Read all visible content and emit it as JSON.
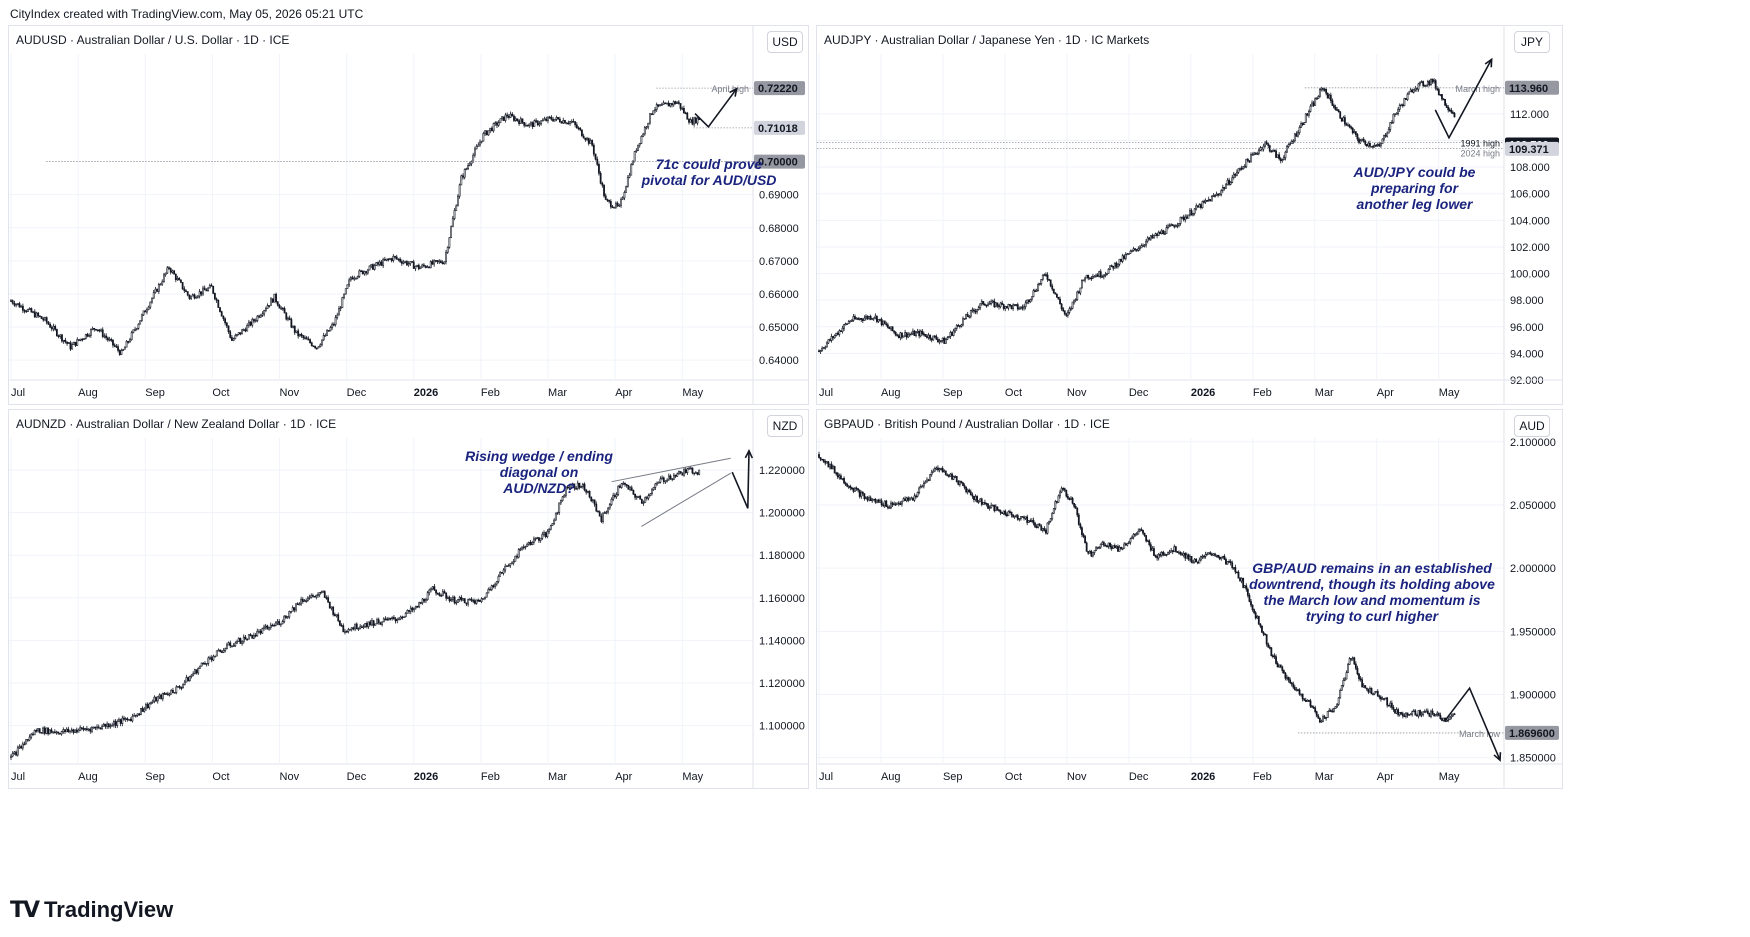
{
  "header": {
    "text": "CityIndex created with TradingView.com, May 05, 2026 05:21 UTC"
  },
  "footer": {
    "brand": "TradingView",
    "logo_icon": "tradingview-logo-icon"
  },
  "colors": {
    "candle": "#131722",
    "grid": "#f0f3fa",
    "accent_label": "#787b86",
    "annotation": "#1a237e"
  },
  "chart_data": [
    {
      "id": "audusd",
      "type": "candlestick",
      "title": "AUDUSD · Australian Dollar / U.S. Dollar · 1D · ICE",
      "unit": "USD",
      "ylim": [
        0.634,
        0.7325
      ],
      "y_ticks": [
        0.64,
        0.65,
        0.66,
        0.67,
        0.68,
        0.69
      ],
      "y_tick_labels": [
        "0.64000",
        "0.65000",
        "0.66000",
        "0.67000",
        "0.68000",
        "0.69000"
      ],
      "x_labels": [
        "Jul",
        "Aug",
        "Sep",
        "Oct",
        "Nov",
        "Dec",
        "2026",
        "Feb",
        "Mar",
        "Apr",
        "May"
      ],
      "price_path": [
        [
          0,
          0.658
        ],
        [
          20,
          0.652
        ],
        [
          35,
          0.644
        ],
        [
          50,
          0.65
        ],
        [
          65,
          0.642
        ],
        [
          80,
          0.656
        ],
        [
          93,
          0.668
        ],
        [
          105,
          0.659
        ],
        [
          118,
          0.662
        ],
        [
          130,
          0.646
        ],
        [
          143,
          0.652
        ],
        [
          155,
          0.659
        ],
        [
          168,
          0.648
        ],
        [
          180,
          0.644
        ],
        [
          190,
          0.651
        ],
        [
          200,
          0.665
        ],
        [
          212,
          0.668
        ],
        [
          225,
          0.671
        ],
        [
          240,
          0.668
        ],
        [
          255,
          0.67
        ],
        [
          265,
          0.695
        ],
        [
          278,
          0.708
        ],
        [
          292,
          0.714
        ],
        [
          305,
          0.711
        ],
        [
          318,
          0.713
        ],
        [
          330,
          0.712
        ],
        [
          342,
          0.705
        ],
        [
          350,
          0.688
        ],
        [
          358,
          0.686
        ],
        [
          368,
          0.704
        ],
        [
          378,
          0.716
        ],
        [
          392,
          0.718
        ],
        [
          400,
          0.712
        ],
        [
          405,
          0.713
        ]
      ],
      "price_labels": [
        {
          "value": 0.7222,
          "text": "0.72220",
          "style": "gray"
        },
        {
          "value": 0.71018,
          "text": "0.71018",
          "style": "light"
        },
        {
          "value": 0.7,
          "text": "0.70000",
          "style": "gray"
        }
      ],
      "levels": [
        {
          "value": 0.7222,
          "from": 0.87,
          "label": "April high"
        },
        {
          "value": 0.71018,
          "from": 0.92,
          "label": ""
        },
        {
          "value": 0.7,
          "from": 0.05,
          "label": ""
        }
      ],
      "arrows": [
        [
          [
            0.922,
            0.7145
          ],
          [
            0.94,
            0.7105
          ],
          [
            0.978,
            0.722
          ]
        ]
      ],
      "annotation": "71c could prove\npivotal for AUD/USD"
    },
    {
      "id": "audjpy",
      "type": "candlestick",
      "title": "AUDJPY · Australian Dollar / Japanese Yen · 1D · IC Markets",
      "unit": "JPY",
      "ylim": [
        92.0,
        116.5
      ],
      "y_ticks": [
        92,
        94,
        96,
        98,
        100,
        102,
        104,
        106,
        108,
        110,
        112
      ],
      "y_tick_labels": [
        "92.000",
        "94.000",
        "96.000",
        "98.000",
        "100.000",
        "102.000",
        "104.000",
        "106.000",
        "108.000",
        "",
        "112.000"
      ],
      "x_labels": [
        "Jul",
        "Aug",
        "Sep",
        "Oct",
        "Nov",
        "Dec",
        "2026",
        "Feb",
        "Mar",
        "Apr",
        "May"
      ],
      "price_path": [
        [
          0,
          94.2
        ],
        [
          20,
          96.5
        ],
        [
          35,
          96.8
        ],
        [
          50,
          95.4
        ],
        [
          65,
          95.5
        ],
        [
          80,
          94.9
        ],
        [
          92,
          96.5
        ],
        [
          105,
          97.8
        ],
        [
          118,
          97.6
        ],
        [
          130,
          97.4
        ],
        [
          145,
          100
        ],
        [
          158,
          96.7
        ],
        [
          170,
          99.8
        ],
        [
          182,
          100
        ],
        [
          195,
          101.2
        ],
        [
          210,
          102.5
        ],
        [
          225,
          103.5
        ],
        [
          240,
          104.8
        ],
        [
          255,
          106
        ],
        [
          270,
          108
        ],
        [
          285,
          109.8
        ],
        [
          295,
          108.5
        ],
        [
          312,
          112
        ],
        [
          322,
          114
        ],
        [
          332,
          112
        ],
        [
          345,
          110
        ],
        [
          358,
          109.5
        ],
        [
          368,
          112
        ],
        [
          380,
          114
        ],
        [
          392,
          114.5
        ],
        [
          400,
          112.8
        ],
        [
          406,
          112
        ]
      ],
      "price_labels": [
        {
          "value": 113.96,
          "text": "113.960",
          "style": "gray"
        },
        {
          "value": 109.7,
          "text": "109.700",
          "style": "dark"
        },
        {
          "value": 109.371,
          "text": "109.371",
          "style": "light"
        }
      ],
      "levels": [
        {
          "value": 113.96,
          "from": 0.71,
          "label": "March high"
        },
        {
          "value": 109.85,
          "from": 0.0,
          "label": "1991 high"
        },
        {
          "value": 109.4,
          "from": 0.0,
          "label": "2024 high"
        }
      ],
      "arrows": [
        [
          [
            0.9,
            112.3
          ],
          [
            0.92,
            110.2
          ],
          [
            0.982,
            116.1
          ]
        ]
      ],
      "annotation": "AUD/JPY could be\npreparing for\nanother leg lower"
    },
    {
      "id": "audnzd",
      "type": "candlestick",
      "title": "AUDNZD · Australian Dollar / New Zealand Dollar · 1D · ICE",
      "unit": "NZD",
      "ylim": [
        1.082,
        1.235
      ],
      "y_ticks": [
        1.1,
        1.12,
        1.14,
        1.16,
        1.18,
        1.2,
        1.22
      ],
      "y_tick_labels": [
        "1.100000",
        "1.120000",
        "1.140000",
        "1.160000",
        "1.180000",
        "1.200000",
        "1.220000"
      ],
      "x_labels": [
        "Jul",
        "Aug",
        "Sep",
        "Oct",
        "Nov",
        "Dec",
        "2026",
        "Feb",
        "Mar",
        "Apr",
        "May"
      ],
      "price_path": [
        [
          0,
          1.085
        ],
        [
          15,
          1.098
        ],
        [
          30,
          1.097
        ],
        [
          50,
          1.099
        ],
        [
          70,
          1.103
        ],
        [
          85,
          1.112
        ],
        [
          100,
          1.118
        ],
        [
          115,
          1.13
        ],
        [
          130,
          1.138
        ],
        [
          145,
          1.143
        ],
        [
          160,
          1.149
        ],
        [
          172,
          1.159
        ],
        [
          185,
          1.162
        ],
        [
          197,
          1.145
        ],
        [
          212,
          1.148
        ],
        [
          228,
          1.15
        ],
        [
          240,
          1.155
        ],
        [
          250,
          1.164
        ],
        [
          262,
          1.159
        ],
        [
          278,
          1.158
        ],
        [
          290,
          1.171
        ],
        [
          305,
          1.185
        ],
        [
          318,
          1.19
        ],
        [
          330,
          1.213
        ],
        [
          340,
          1.212
        ],
        [
          350,
          1.197
        ],
        [
          362,
          1.214
        ],
        [
          374,
          1.205
        ],
        [
          385,
          1.215
        ],
        [
          395,
          1.218
        ],
        [
          403,
          1.22
        ],
        [
          408,
          1.219
        ]
      ],
      "price_labels": [],
      "levels": [],
      "wedge": [
        [
          [
            0.81,
            1.2145
          ],
          [
            0.97,
            1.2255
          ]
        ],
        [
          [
            0.85,
            1.1935
          ],
          [
            0.97,
            1.2185
          ]
        ]
      ],
      "arrows": [
        [
          [
            0.972,
            1.219
          ],
          [
            0.993,
            1.202
          ],
          [
            1.02,
            1.229
          ]
        ]
      ],
      "annotation": "Rising wedge / ending\ndiagonal on\nAUD/NZD?"
    },
    {
      "id": "gbpaud",
      "type": "candlestick",
      "title": "GBPAUD · British Pound / Australian Dollar · 1D · ICE",
      "unit": "AUD",
      "ylim": [
        1.845,
        2.103
      ],
      "y_ticks": [
        1.85,
        1.9,
        1.95,
        2.0,
        2.05,
        2.1
      ],
      "y_tick_labels": [
        "1.850000",
        "1.900000",
        "1.950000",
        "2.000000",
        "2.050000",
        "2.100000"
      ],
      "x_labels": [
        "Jul",
        "Aug",
        "Sep",
        "Oct",
        "Nov",
        "Dec",
        "2026",
        "Feb",
        "Mar",
        "Apr",
        "May"
      ],
      "price_path": [
        [
          0,
          2.09
        ],
        [
          15,
          2.07
        ],
        [
          30,
          2.055
        ],
        [
          45,
          2.05
        ],
        [
          60,
          2.055
        ],
        [
          75,
          2.08
        ],
        [
          88,
          2.07
        ],
        [
          100,
          2.055
        ],
        [
          115,
          2.045
        ],
        [
          130,
          2.04
        ],
        [
          145,
          2.03
        ],
        [
          155,
          2.065
        ],
        [
          163,
          2.05
        ],
        [
          172,
          2.01
        ],
        [
          182,
          2.02
        ],
        [
          192,
          2.015
        ],
        [
          205,
          2.03
        ],
        [
          215,
          2.01
        ],
        [
          228,
          2.015
        ],
        [
          240,
          2.005
        ],
        [
          252,
          2.012
        ],
        [
          262,
          2.004
        ],
        [
          270,
          1.99
        ],
        [
          280,
          1.96
        ],
        [
          290,
          1.93
        ],
        [
          300,
          1.91
        ],
        [
          312,
          1.895
        ],
        [
          320,
          1.88
        ],
        [
          330,
          1.89
        ],
        [
          340,
          1.93
        ],
        [
          348,
          1.905
        ],
        [
          358,
          1.9
        ],
        [
          370,
          1.885
        ],
        [
          380,
          1.885
        ],
        [
          392,
          1.885
        ],
        [
          400,
          1.88
        ],
        [
          406,
          1.883
        ]
      ],
      "price_labels": [
        {
          "value": 1.8696,
          "text": "1.869600",
          "style": "gray"
        }
      ],
      "levels": [
        {
          "value": 1.8696,
          "from": 0.7,
          "label": "March low"
        }
      ],
      "arrows": [
        [
          [
            0.915,
            1.88
          ],
          [
            0.95,
            1.905
          ],
          [
            1.0,
            1.848
          ]
        ]
      ],
      "annotation": "GBP/AUD remains in an established\ndowntrend, though its holding above\nthe March low and momentum is\ntrying to curl higher"
    }
  ]
}
